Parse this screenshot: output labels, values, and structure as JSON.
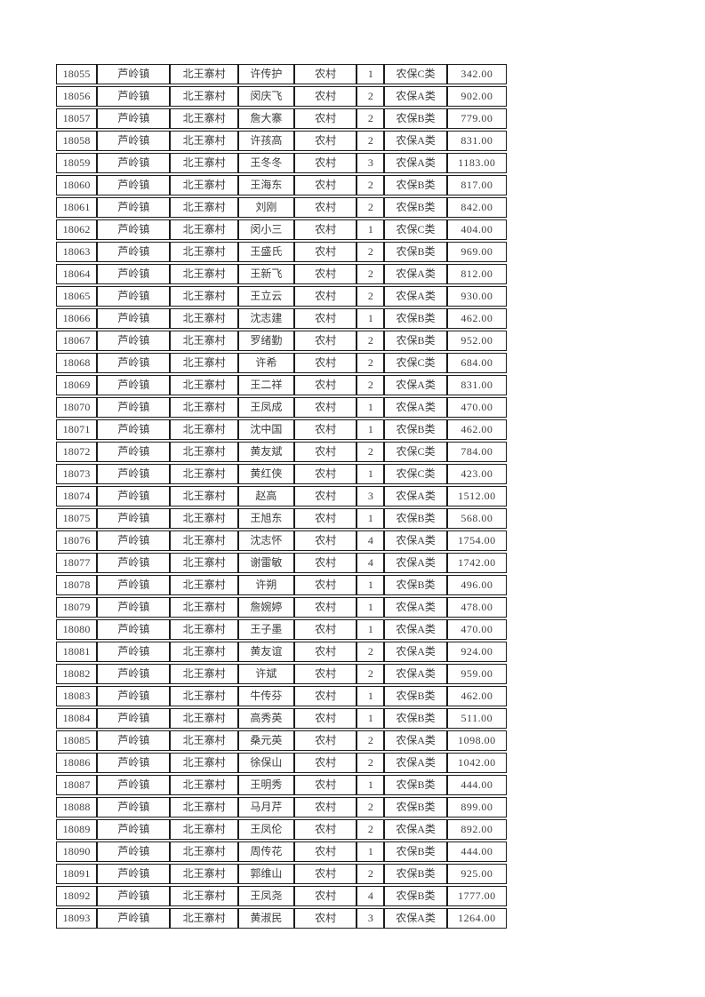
{
  "page": {
    "background_color": "#ffffff",
    "text_color": "#3c3c3c",
    "border_color": "#1c1c1c",
    "description_note": "scanned roster table page, rows 18055-18093, no header row visible"
  },
  "table": {
    "column_keys": [
      "id",
      "town",
      "village",
      "name",
      "residence",
      "count",
      "category",
      "amount"
    ],
    "rows": [
      [
        "18055",
        "芦岭镇",
        "北王寨村",
        "许传护",
        "农村",
        "1",
        "农保C类",
        "342.00"
      ],
      [
        "18056",
        "芦岭镇",
        "北王寨村",
        "闵庆飞",
        "农村",
        "2",
        "农保A类",
        "902.00"
      ],
      [
        "18057",
        "芦岭镇",
        "北王寨村",
        "詹大寨",
        "农村",
        "2",
        "农保B类",
        "779.00"
      ],
      [
        "18058",
        "芦岭镇",
        "北王寨村",
        "许孩高",
        "农村",
        "2",
        "农保A类",
        "831.00"
      ],
      [
        "18059",
        "芦岭镇",
        "北王寨村",
        "王冬冬",
        "农村",
        "3",
        "农保A类",
        "1183.00"
      ],
      [
        "18060",
        "芦岭镇",
        "北王寨村",
        "王海东",
        "农村",
        "2",
        "农保B类",
        "817.00"
      ],
      [
        "18061",
        "芦岭镇",
        "北王寨村",
        "刘刚",
        "农村",
        "2",
        "农保B类",
        "842.00"
      ],
      [
        "18062",
        "芦岭镇",
        "北王寨村",
        "闵小三",
        "农村",
        "1",
        "农保C类",
        "404.00"
      ],
      [
        "18063",
        "芦岭镇",
        "北王寨村",
        "王盛氏",
        "农村",
        "2",
        "农保B类",
        "969.00"
      ],
      [
        "18064",
        "芦岭镇",
        "北王寨村",
        "王新飞",
        "农村",
        "2",
        "农保A类",
        "812.00"
      ],
      [
        "18065",
        "芦岭镇",
        "北王寨村",
        "王立云",
        "农村",
        "2",
        "农保A类",
        "930.00"
      ],
      [
        "18066",
        "芦岭镇",
        "北王寨村",
        "沈志建",
        "农村",
        "1",
        "农保B类",
        "462.00"
      ],
      [
        "18067",
        "芦岭镇",
        "北王寨村",
        "罗绪勤",
        "农村",
        "2",
        "农保B类",
        "952.00"
      ],
      [
        "18068",
        "芦岭镇",
        "北王寨村",
        "许希",
        "农村",
        "2",
        "农保C类",
        "684.00"
      ],
      [
        "18069",
        "芦岭镇",
        "北王寨村",
        "王二祥",
        "农村",
        "2",
        "农保A类",
        "831.00"
      ],
      [
        "18070",
        "芦岭镇",
        "北王寨村",
        "王凤成",
        "农村",
        "1",
        "农保A类",
        "470.00"
      ],
      [
        "18071",
        "芦岭镇",
        "北王寨村",
        "沈中国",
        "农村",
        "1",
        "农保B类",
        "462.00"
      ],
      [
        "18072",
        "芦岭镇",
        "北王寨村",
        "黄友斌",
        "农村",
        "2",
        "农保C类",
        "784.00"
      ],
      [
        "18073",
        "芦岭镇",
        "北王寨村",
        "黄红侠",
        "农村",
        "1",
        "农保C类",
        "423.00"
      ],
      [
        "18074",
        "芦岭镇",
        "北王寨村",
        "赵高",
        "农村",
        "3",
        "农保A类",
        "1512.00"
      ],
      [
        "18075",
        "芦岭镇",
        "北王寨村",
        "王旭东",
        "农村",
        "1",
        "农保B类",
        "568.00"
      ],
      [
        "18076",
        "芦岭镇",
        "北王寨村",
        "沈志怀",
        "农村",
        "4",
        "农保A类",
        "1754.00"
      ],
      [
        "18077",
        "芦岭镇",
        "北王寨村",
        "谢雷敏",
        "农村",
        "4",
        "农保A类",
        "1742.00"
      ],
      [
        "18078",
        "芦岭镇",
        "北王寨村",
        "许朔",
        "农村",
        "1",
        "农保B类",
        "496.00"
      ],
      [
        "18079",
        "芦岭镇",
        "北王寨村",
        "詹婉婷",
        "农村",
        "1",
        "农保A类",
        "478.00"
      ],
      [
        "18080",
        "芦岭镇",
        "北王寨村",
        "王子墨",
        "农村",
        "1",
        "农保A类",
        "470.00"
      ],
      [
        "18081",
        "芦岭镇",
        "北王寨村",
        "黄友谊",
        "农村",
        "2",
        "农保A类",
        "924.00"
      ],
      [
        "18082",
        "芦岭镇",
        "北王寨村",
        "许斌",
        "农村",
        "2",
        "农保A类",
        "959.00"
      ],
      [
        "18083",
        "芦岭镇",
        "北王寨村",
        "牛传芬",
        "农村",
        "1",
        "农保B类",
        "462.00"
      ],
      [
        "18084",
        "芦岭镇",
        "北王寨村",
        "高秀英",
        "农村",
        "1",
        "农保B类",
        "511.00"
      ],
      [
        "18085",
        "芦岭镇",
        "北王寨村",
        "桑元英",
        "农村",
        "2",
        "农保A类",
        "1098.00"
      ],
      [
        "18086",
        "芦岭镇",
        "北王寨村",
        "徐保山",
        "农村",
        "2",
        "农保A类",
        "1042.00"
      ],
      [
        "18087",
        "芦岭镇",
        "北王寨村",
        "王明秀",
        "农村",
        "1",
        "农保B类",
        "444.00"
      ],
      [
        "18088",
        "芦岭镇",
        "北王寨村",
        "马月芹",
        "农村",
        "2",
        "农保B类",
        "899.00"
      ],
      [
        "18089",
        "芦岭镇",
        "北王寨村",
        "王凤伦",
        "农村",
        "2",
        "农保A类",
        "892.00"
      ],
      [
        "18090",
        "芦岭镇",
        "北王寨村",
        "周传花",
        "农村",
        "1",
        "农保B类",
        "444.00"
      ],
      [
        "18091",
        "芦岭镇",
        "北王寨村",
        "郭维山",
        "农村",
        "2",
        "农保B类",
        "925.00"
      ],
      [
        "18092",
        "芦岭镇",
        "北王寨村",
        "王凤尧",
        "农村",
        "4",
        "农保B类",
        "1777.00"
      ],
      [
        "18093",
        "芦岭镇",
        "北王寨村",
        "黄淑民",
        "农村",
        "3",
        "农保A类",
        "1264.00"
      ]
    ]
  }
}
